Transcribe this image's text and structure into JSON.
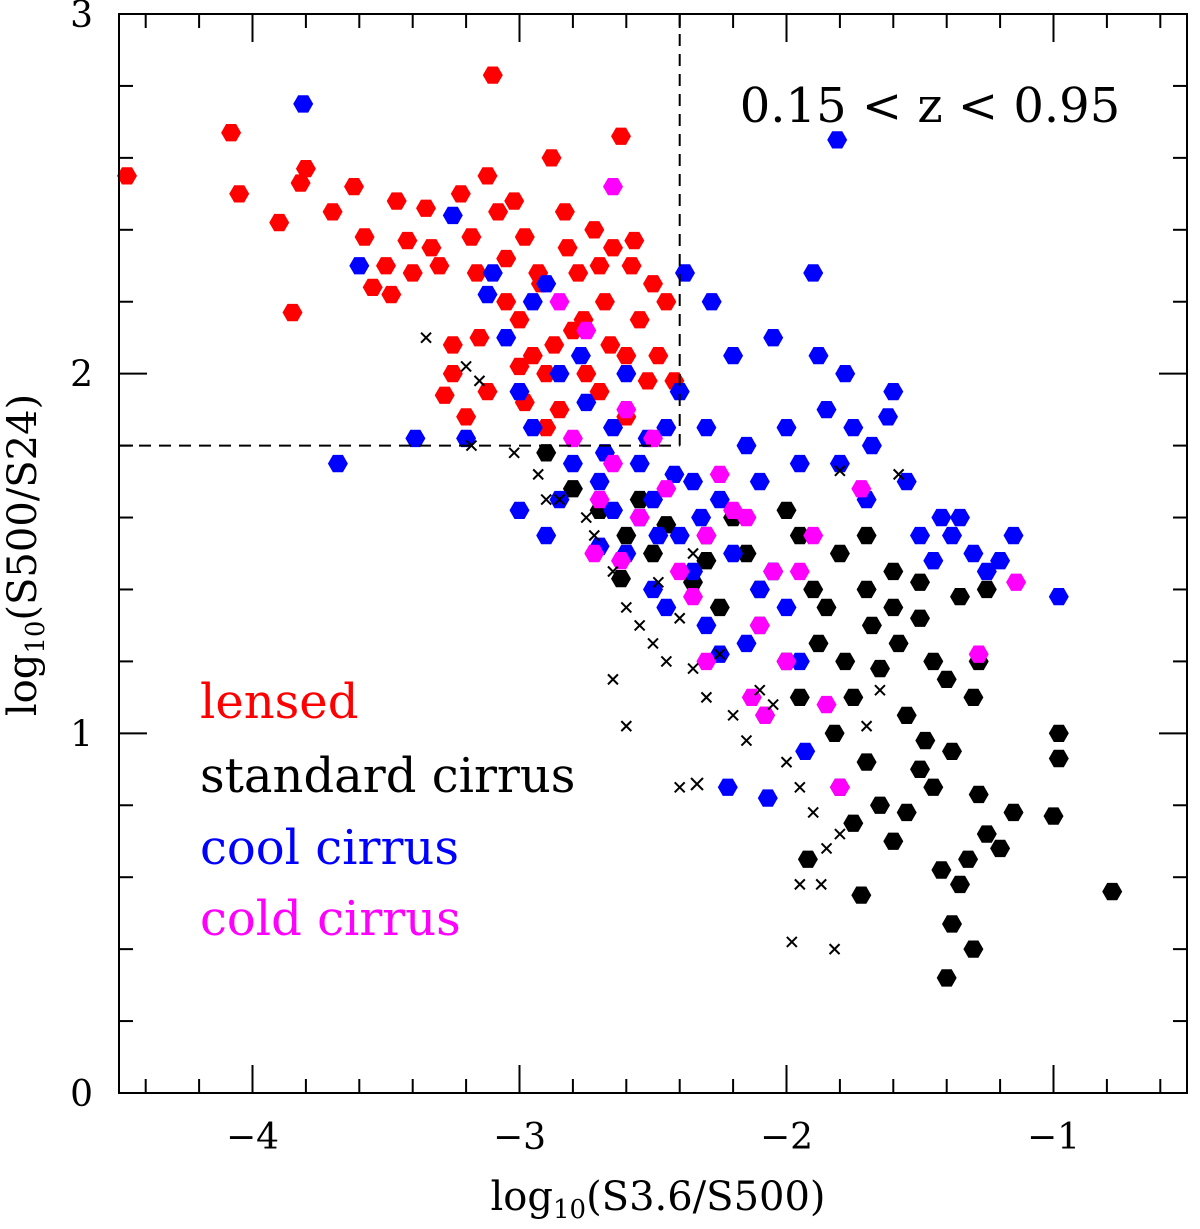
{
  "chart_data": {
    "type": "scatter",
    "xlabel": "log10(S3.6/S500)",
    "ylabel": "log10(S500/S24)",
    "xlim": [
      -4.5,
      -0.5
    ],
    "ylim": [
      0,
      3
    ],
    "xticks": [
      -4,
      -3,
      -2,
      -1
    ],
    "yticks": [
      0,
      1,
      2,
      3
    ],
    "x_tick_labels": [
      "−4",
      "−3",
      "−2",
      "−1"
    ],
    "y_tick_labels": [
      "0",
      "1",
      "2",
      "3"
    ],
    "annotation": "0.15 < z < 0.95",
    "cut_lines": {
      "x": -2.4,
      "y": 1.8
    },
    "grid": false,
    "legend_position": "bottom-left",
    "series": [
      {
        "name": "lensed",
        "color": "#ff0000",
        "marker": "hexagon",
        "points": [
          [
            -4.47,
            2.55
          ],
          [
            -4.08,
            2.67
          ],
          [
            -4.05,
            2.5
          ],
          [
            -3.9,
            2.42
          ],
          [
            -3.85,
            2.17
          ],
          [
            -3.82,
            2.53
          ],
          [
            -3.8,
            2.57
          ],
          [
            -3.7,
            2.45
          ],
          [
            -3.62,
            2.52
          ],
          [
            -3.58,
            2.38
          ],
          [
            -3.55,
            2.24
          ],
          [
            -3.5,
            2.3
          ],
          [
            -3.46,
            2.48
          ],
          [
            -3.42,
            2.37
          ],
          [
            -3.4,
            2.28
          ],
          [
            -3.35,
            2.46
          ],
          [
            -3.3,
            2.3
          ],
          [
            -3.25,
            2.08
          ],
          [
            -3.22,
            2.5
          ],
          [
            -3.18,
            2.38
          ],
          [
            -3.12,
            2.55
          ],
          [
            -3.1,
            2.83
          ],
          [
            -3.08,
            2.45
          ],
          [
            -3.05,
            2.32
          ],
          [
            -3.02,
            2.48
          ],
          [
            -3.0,
            2.15
          ],
          [
            -2.98,
            2.38
          ],
          [
            -2.95,
            2.05
          ],
          [
            -2.92,
            2.25
          ],
          [
            -2.9,
            2.0
          ],
          [
            -2.88,
            2.6
          ],
          [
            -2.85,
            1.9
          ],
          [
            -2.82,
            2.35
          ],
          [
            -2.8,
            2.12
          ],
          [
            -2.78,
            2.28
          ],
          [
            -2.75,
            2.0
          ],
          [
            -2.72,
            2.4
          ],
          [
            -2.7,
            1.95
          ],
          [
            -2.68,
            2.2
          ],
          [
            -2.65,
            2.35
          ],
          [
            -2.62,
            2.66
          ],
          [
            -2.6,
            2.05
          ],
          [
            -2.58,
            2.3
          ],
          [
            -2.55,
            2.15
          ],
          [
            -2.52,
            1.98
          ],
          [
            -2.5,
            2.25
          ],
          [
            -2.48,
            2.05
          ],
          [
            -2.45,
            2.2
          ],
          [
            -2.42,
            1.98
          ],
          [
            -3.15,
            2.1
          ],
          [
            -3.12,
            1.95
          ],
          [
            -3.2,
            1.88
          ],
          [
            -3.25,
            2.0
          ],
          [
            -3.28,
            1.94
          ],
          [
            -3.05,
            2.2
          ],
          [
            -2.98,
            1.92
          ],
          [
            -2.87,
            2.08
          ],
          [
            -2.76,
            2.15
          ],
          [
            -2.66,
            2.08
          ],
          [
            -2.6,
            1.88
          ],
          [
            -3.33,
            2.35
          ],
          [
            -3.48,
            2.22
          ],
          [
            -2.93,
            2.28
          ],
          [
            -2.83,
            2.45
          ],
          [
            -2.7,
            2.3
          ],
          [
            -2.57,
            2.37
          ],
          [
            -3.16,
            2.28
          ],
          [
            -3.0,
            2.02
          ],
          [
            -2.9,
            1.85
          ]
        ]
      },
      {
        "name": "standard cirrus",
        "color": "#000000",
        "marker": "hexagon",
        "points": [
          [
            -2.9,
            1.78
          ],
          [
            -2.8,
            1.68
          ],
          [
            -2.7,
            1.62
          ],
          [
            -2.6,
            1.55
          ],
          [
            -2.5,
            1.5
          ],
          [
            -2.45,
            1.58
          ],
          [
            -2.35,
            1.42
          ],
          [
            -2.3,
            1.48
          ],
          [
            -2.25,
            1.35
          ],
          [
            -2.2,
            1.6
          ],
          [
            -2.15,
            1.5
          ],
          [
            -2.1,
            1.3
          ],
          [
            -2.05,
            1.45
          ],
          [
            -2.0,
            1.62
          ],
          [
            -1.95,
            1.55
          ],
          [
            -1.9,
            1.4
          ],
          [
            -1.88,
            1.25
          ],
          [
            -1.85,
            1.35
          ],
          [
            -1.8,
            1.5
          ],
          [
            -1.78,
            1.2
          ],
          [
            -1.75,
            1.1
          ],
          [
            -1.7,
            1.4
          ],
          [
            -1.68,
            1.3
          ],
          [
            -1.65,
            1.18
          ],
          [
            -1.6,
            1.45
          ],
          [
            -1.58,
            1.25
          ],
          [
            -1.55,
            1.05
          ],
          [
            -1.5,
            1.32
          ],
          [
            -1.48,
            0.98
          ],
          [
            -1.45,
            1.2
          ],
          [
            -1.4,
            1.15
          ],
          [
            -1.38,
            0.95
          ],
          [
            -1.35,
            1.38
          ],
          [
            -1.3,
            1.1
          ],
          [
            -1.28,
            1.2
          ],
          [
            -1.8,
            0.85
          ],
          [
            -1.75,
            0.75
          ],
          [
            -1.7,
            0.92
          ],
          [
            -1.65,
            0.8
          ],
          [
            -1.6,
            0.7
          ],
          [
            -1.55,
            0.78
          ],
          [
            -1.5,
            0.9
          ],
          [
            -1.45,
            0.85
          ],
          [
            -1.42,
            0.62
          ],
          [
            -1.38,
            0.47
          ],
          [
            -1.35,
            0.58
          ],
          [
            -1.32,
            0.65
          ],
          [
            -1.28,
            0.83
          ],
          [
            -1.25,
            0.72
          ],
          [
            -1.2,
            0.68
          ],
          [
            -1.15,
            0.78
          ],
          [
            -0.98,
            1.0
          ],
          [
            -0.98,
            0.93
          ],
          [
            -1.0,
            0.77
          ],
          [
            -0.78,
            0.56
          ],
          [
            -1.3,
            0.4
          ],
          [
            -1.4,
            0.32
          ],
          [
            -1.72,
            0.55
          ],
          [
            -1.92,
            0.65
          ],
          [
            -1.82,
            1.0
          ],
          [
            -2.0,
            1.2
          ],
          [
            -2.08,
            1.05
          ],
          [
            -1.95,
            1.1
          ],
          [
            -2.3,
            1.55
          ],
          [
            -2.55,
            1.65
          ],
          [
            -2.62,
            1.43
          ],
          [
            -1.6,
            1.35
          ],
          [
            -1.5,
            1.42
          ],
          [
            -1.25,
            1.4
          ],
          [
            -1.7,
            1.55
          ],
          [
            -2.1,
            1.4
          ]
        ]
      },
      {
        "name": "cool cirrus",
        "color": "#0000ff",
        "marker": "hexagon",
        "points": [
          [
            -3.81,
            2.75
          ],
          [
            -1.81,
            2.65
          ],
          [
            -3.68,
            1.75
          ],
          [
            -3.39,
            1.82
          ],
          [
            -3.2,
            1.82
          ],
          [
            -3.25,
            2.44
          ],
          [
            -3.6,
            2.3
          ],
          [
            -3.12,
            2.22
          ],
          [
            -3.05,
            2.1
          ],
          [
            -3.0,
            1.95
          ],
          [
            -2.95,
            1.85
          ],
          [
            -2.9,
            2.25
          ],
          [
            -2.85,
            2.0
          ],
          [
            -2.8,
            1.75
          ],
          [
            -2.75,
            1.92
          ],
          [
            -2.7,
            1.7
          ],
          [
            -2.65,
            1.85
          ],
          [
            -2.6,
            2.0
          ],
          [
            -2.55,
            1.75
          ],
          [
            -2.5,
            1.65
          ],
          [
            -2.45,
            1.85
          ],
          [
            -2.42,
            1.72
          ],
          [
            -2.4,
            1.95
          ],
          [
            -2.38,
            2.28
          ],
          [
            -2.35,
            1.7
          ],
          [
            -2.32,
            1.6
          ],
          [
            -2.3,
            1.85
          ],
          [
            -2.28,
            2.2
          ],
          [
            -2.25,
            1.65
          ],
          [
            -2.2,
            2.05
          ],
          [
            -2.15,
            1.8
          ],
          [
            -2.1,
            1.7
          ],
          [
            -2.05,
            2.1
          ],
          [
            -2.0,
            1.85
          ],
          [
            -1.95,
            1.75
          ],
          [
            -1.9,
            2.28
          ],
          [
            -1.88,
            2.05
          ],
          [
            -1.85,
            1.9
          ],
          [
            -1.8,
            1.75
          ],
          [
            -1.78,
            2.0
          ],
          [
            -1.75,
            1.85
          ],
          [
            -1.7,
            1.65
          ],
          [
            -1.68,
            1.8
          ],
          [
            -1.62,
            1.88
          ],
          [
            -1.55,
            1.7
          ],
          [
            -1.5,
            1.55
          ],
          [
            -1.45,
            1.48
          ],
          [
            -1.42,
            1.6
          ],
          [
            -1.38,
            1.55
          ],
          [
            -1.35,
            1.6
          ],
          [
            -1.3,
            1.5
          ],
          [
            -1.25,
            1.45
          ],
          [
            -1.2,
            1.48
          ],
          [
            -1.15,
            1.55
          ],
          [
            -0.98,
            1.38
          ],
          [
            -2.6,
            1.5
          ],
          [
            -2.55,
            1.6
          ],
          [
            -2.5,
            1.4
          ],
          [
            -2.45,
            1.35
          ],
          [
            -2.4,
            1.55
          ],
          [
            -2.35,
            1.45
          ],
          [
            -2.3,
            1.3
          ],
          [
            -2.25,
            1.22
          ],
          [
            -2.2,
            1.5
          ],
          [
            -2.15,
            1.25
          ],
          [
            -2.1,
            1.4
          ],
          [
            -2.05,
            1.45
          ],
          [
            -2.0,
            1.35
          ],
          [
            -1.95,
            1.2
          ],
          [
            -2.22,
            0.85
          ],
          [
            -2.07,
            0.82
          ],
          [
            -1.93,
            0.95
          ],
          [
            -2.9,
            1.55
          ],
          [
            -3.0,
            1.62
          ],
          [
            -2.85,
            1.65
          ],
          [
            -2.95,
            2.2
          ],
          [
            -3.1,
            2.28
          ],
          [
            -2.77,
            2.05
          ],
          [
            -1.6,
            1.95
          ],
          [
            -2.65,
            1.62
          ],
          [
            -2.7,
            1.52
          ],
          [
            -2.52,
            1.82
          ],
          [
            -2.48,
            1.55
          ],
          [
            -2.68,
            1.78
          ]
        ]
      },
      {
        "name": "cold cirrus",
        "color": "#ff00ff",
        "marker": "hexagon",
        "points": [
          [
            -2.65,
            2.52
          ],
          [
            -2.85,
            2.2
          ],
          [
            -2.8,
            1.82
          ],
          [
            -2.75,
            2.12
          ],
          [
            -2.7,
            1.65
          ],
          [
            -2.65,
            1.75
          ],
          [
            -2.6,
            1.9
          ],
          [
            -2.55,
            1.6
          ],
          [
            -2.5,
            1.82
          ],
          [
            -2.45,
            1.68
          ],
          [
            -2.4,
            1.45
          ],
          [
            -2.35,
            1.38
          ],
          [
            -2.3,
            1.55
          ],
          [
            -2.25,
            1.72
          ],
          [
            -2.2,
            1.62
          ],
          [
            -2.15,
            1.6
          ],
          [
            -2.1,
            1.3
          ],
          [
            -2.05,
            1.45
          ],
          [
            -2.0,
            1.2
          ],
          [
            -1.95,
            1.45
          ],
          [
            -1.9,
            1.55
          ],
          [
            -1.85,
            1.08
          ],
          [
            -1.8,
            0.85
          ],
          [
            -1.72,
            1.68
          ],
          [
            -1.28,
            1.22
          ],
          [
            -1.14,
            1.42
          ],
          [
            -2.13,
            1.1
          ],
          [
            -2.08,
            1.05
          ],
          [
            -2.62,
            1.48
          ],
          [
            -2.72,
            1.5
          ],
          [
            -2.3,
            1.2
          ]
        ]
      },
      {
        "name": "",
        "color": "#000000",
        "marker": "cross",
        "points": [
          [
            -3.35,
            2.1
          ],
          [
            -3.2,
            2.02
          ],
          [
            -3.15,
            1.98
          ],
          [
            -3.02,
            1.78
          ],
          [
            -2.93,
            1.72
          ],
          [
            -2.85,
            1.65
          ],
          [
            -2.72,
            1.55
          ],
          [
            -2.65,
            1.45
          ],
          [
            -2.6,
            1.35
          ],
          [
            -2.55,
            1.3
          ],
          [
            -2.5,
            1.25
          ],
          [
            -2.45,
            1.2
          ],
          [
            -2.4,
            1.32
          ],
          [
            -2.35,
            1.18
          ],
          [
            -2.3,
            1.1
          ],
          [
            -2.25,
            1.22
          ],
          [
            -2.2,
            1.05
          ],
          [
            -2.15,
            0.98
          ],
          [
            -2.1,
            1.12
          ],
          [
            -2.05,
            1.08
          ],
          [
            -2.0,
            0.92
          ],
          [
            -1.95,
            0.85
          ],
          [
            -1.9,
            0.78
          ],
          [
            -1.85,
            0.68
          ],
          [
            -1.8,
            0.72
          ],
          [
            -2.65,
            1.15
          ],
          [
            -2.4,
            0.85
          ],
          [
            -1.95,
            0.58
          ],
          [
            -1.87,
            0.58
          ],
          [
            -1.98,
            0.42
          ],
          [
            -1.82,
            0.4
          ],
          [
            -2.6,
            1.02
          ],
          [
            -2.75,
            1.6
          ],
          [
            -3.18,
            1.8
          ],
          [
            -1.8,
            1.73
          ],
          [
            -1.65,
            1.12
          ],
          [
            -1.58,
            1.72
          ],
          [
            -2.9,
            1.65
          ],
          [
            -2.35,
            1.5
          ],
          [
            -1.7,
            1.02
          ],
          [
            -2.48,
            1.42
          ]
        ]
      }
    ],
    "legend": [
      {
        "label": "lensed",
        "color": "#ff0000"
      },
      {
        "label": "standard cirrus",
        "color": "#000000",
        "marker": "cross"
      },
      {
        "label": "cool cirrus",
        "color": "#0000ff"
      },
      {
        "label": "cold cirrus",
        "color": "#ff00ff"
      }
    ]
  }
}
